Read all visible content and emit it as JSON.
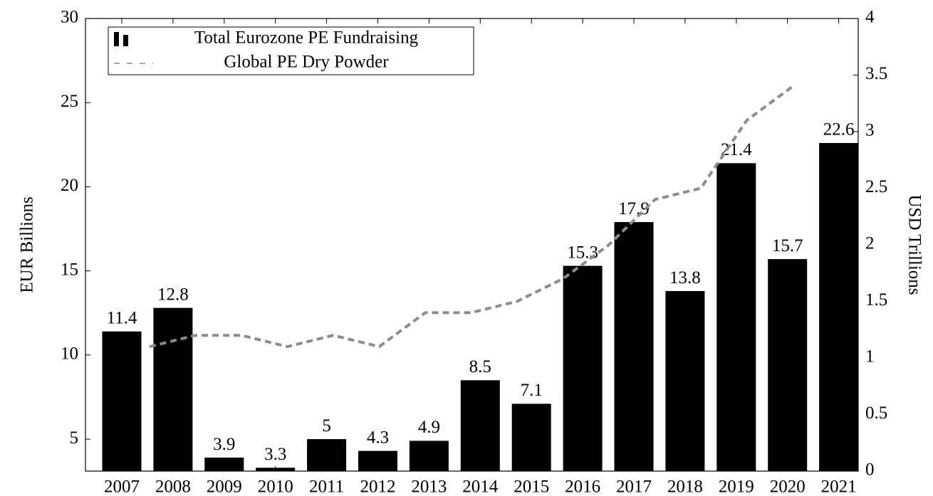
{
  "chart_data": {
    "type": "bar",
    "categories": [
      "2007",
      "2008",
      "2009",
      "2010",
      "2011",
      "2012",
      "2013",
      "2014",
      "2015",
      "2016",
      "2017",
      "2018",
      "2019",
      "2020",
      "2021"
    ],
    "series": [
      {
        "name": "Total Eurozone PE Fundraising",
        "type": "bar",
        "color": "#000000",
        "values": [
          11.4,
          12.8,
          3.9,
          3.3,
          5,
          4.3,
          4.9,
          8.5,
          7.1,
          15.3,
          17.9,
          13.8,
          21.4,
          15.7,
          22.6
        ]
      },
      {
        "name": "Global PE Dry Powder",
        "type": "line",
        "axis": "y2",
        "color": "#8c8c8c",
        "dashed": true,
        "values": [
          1.1,
          1.2,
          1.2,
          1.1,
          1.2,
          1.1,
          1.4,
          1.4,
          1.5,
          1.7,
          2.0,
          2.4,
          2.5,
          3.1,
          3.4
        ]
      }
    ],
    "ylabel": "EUR Billions",
    "y2label": "USD Trillions",
    "ylim": [
      3.1,
      30
    ],
    "yticks": [
      5,
      10,
      15,
      20,
      25,
      30
    ],
    "y2lim": [
      0,
      4
    ],
    "y2ticks": [
      0,
      0.5,
      1,
      1.5,
      2,
      2.5,
      3,
      3.5,
      4
    ],
    "legend": "upper left",
    "grid": false
  }
}
